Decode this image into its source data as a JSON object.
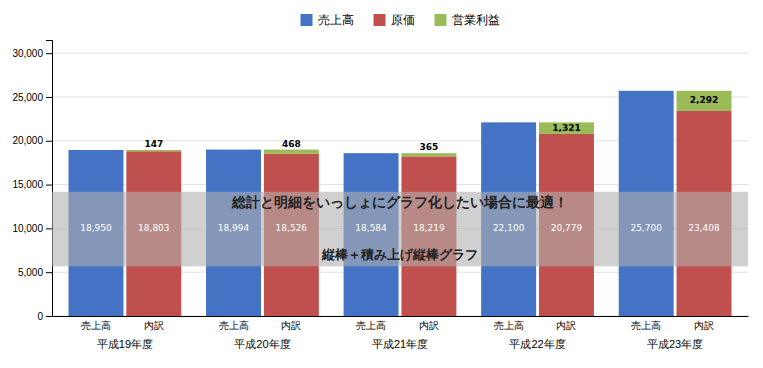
{
  "chart_data": {
    "type": "bar",
    "categories": [
      "平成19年度",
      "平成20年度",
      "平成21年度",
      "平成22年度",
      "平成23年度"
    ],
    "bar_labels": [
      "売上高",
      "内訳"
    ],
    "series": [
      {
        "name": "売上高",
        "color": "#4472C4",
        "values": [
          18950,
          18994,
          18584,
          22100,
          25700
        ],
        "value_labels": [
          "18,950",
          "18,994",
          "18,584",
          "22,100",
          "25,700"
        ]
      },
      {
        "name": "原価",
        "color": "#C0504D",
        "stacked": true,
        "values": [
          18803,
          18526,
          18219,
          20779,
          23408
        ],
        "value_labels": [
          "18,803",
          "18,526",
          "18,219",
          "20,779",
          "23,408"
        ]
      },
      {
        "name": "営業利益",
        "color": "#9BBB59",
        "stacked": true,
        "values": [
          147,
          468,
          365,
          1321,
          2292
        ],
        "value_labels": [
          "147",
          "468",
          "365",
          "1,321",
          "2,292"
        ]
      }
    ],
    "ylim": [
      0,
      31500
    ],
    "yticks": [
      0,
      {
        "value": 5000,
        "label": "5,000"
      },
      {
        "value": 10000,
        "label": "10,000"
      },
      {
        "value": 15000,
        "label": "15,000"
      },
      {
        "value": 20000,
        "label": "20,000"
      },
      {
        "value": 25000,
        "label": "25,000"
      },
      {
        "value": 30000,
        "label": "30,000"
      }
    ],
    "grid": true,
    "legend": "top",
    "data_labels": true,
    "annotations": [
      {
        "text": "総計と明細をいっしょにグラフ化したい場合に最適！"
      },
      {
        "text": "縦棒＋積み上げ縦棒グラフ"
      }
    ]
  }
}
